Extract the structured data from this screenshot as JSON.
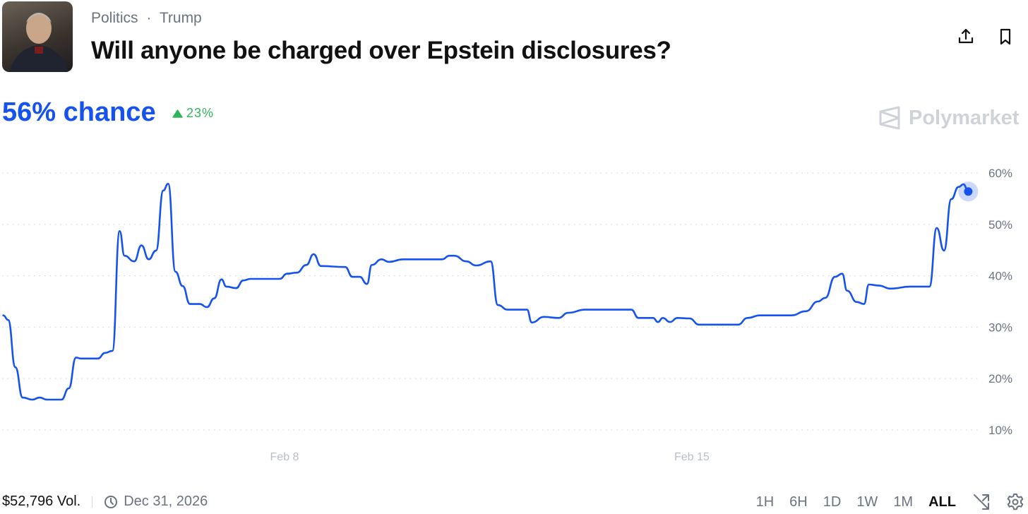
{
  "header": {
    "breadcrumb": [
      "Politics",
      "Trump"
    ],
    "breadcrumb_separator": "·",
    "title": "Will anyone be charged over Epstein disclosures?",
    "icons": [
      "share-icon",
      "bookmark-icon"
    ]
  },
  "summary": {
    "chance": "56% chance",
    "change": "23%",
    "change_direction": "up",
    "brand": "Polymarket"
  },
  "colors": {
    "accent": "#1652f0",
    "positive": "#30b55c"
  },
  "chart_data": {
    "type": "line",
    "title": "",
    "xlabel": "",
    "ylabel": "",
    "x_ticks": [
      "Feb 8",
      "Feb 15"
    ],
    "y_ticks": [
      "10%",
      "20%",
      "30%",
      "40%",
      "50%",
      "60%"
    ],
    "ylim": [
      10,
      60
    ],
    "grid": "horizontal dotted",
    "series": [
      {
        "color": "#1652f0",
        "points": [
          [
            "Feb 3 04:00",
            32.3
          ],
          [
            "Feb 3 06:00",
            31.4
          ],
          [
            "Feb 3 09:00",
            22.2
          ],
          [
            "Feb 3 12:00",
            16.3
          ],
          [
            "Feb 3 16:00",
            15.9
          ],
          [
            "Feb 3 19:00",
            16.3
          ],
          [
            "Feb 3 22:00",
            15.9
          ],
          [
            "Feb 4 04:00",
            15.9
          ],
          [
            "Feb 4 07:00",
            18.1
          ],
          [
            "Feb 4 10:00",
            24.1
          ],
          [
            "Feb 4 12:00",
            23.9
          ],
          [
            "Feb 4 19:00",
            23.9
          ],
          [
            "Feb 4 22:00",
            25.0
          ],
          [
            "Feb 5 01:00",
            25.4
          ],
          [
            "Feb 5 04:00",
            48.7
          ],
          [
            "Feb 5 06:00",
            43.9
          ],
          [
            "Feb 5 10:00",
            42.8
          ],
          [
            "Feb 5 13:00",
            45.9
          ],
          [
            "Feb 5 16:00",
            43.2
          ],
          [
            "Feb 5 19:00",
            44.9
          ],
          [
            "Feb 5 22:00",
            56.6
          ],
          [
            "Feb 6 00:00",
            57.9
          ],
          [
            "Feb 6 03:00",
            40.8
          ],
          [
            "Feb 6 06:00",
            38.0
          ],
          [
            "Feb 6 09:00",
            34.5
          ],
          [
            "Feb 6 13:00",
            34.5
          ],
          [
            "Feb 6 16:00",
            33.9
          ],
          [
            "Feb 6 19:00",
            35.6
          ],
          [
            "Feb 6 22:00",
            39.3
          ],
          [
            "Feb 7 00:00",
            37.9
          ],
          [
            "Feb 7 04:00",
            37.6
          ],
          [
            "Feb 7 07:00",
            39.1
          ],
          [
            "Feb 7 10:00",
            39.4
          ],
          [
            "Feb 7 22:00",
            39.4
          ],
          [
            "Feb 8 01:00",
            40.4
          ],
          [
            "Feb 8 05:00",
            40.6
          ],
          [
            "Feb 8 09:00",
            42.1
          ],
          [
            "Feb 8 12:00",
            44.2
          ],
          [
            "Feb 8 15:00",
            41.9
          ],
          [
            "Feb 9 01:00",
            41.7
          ],
          [
            "Feb 9 04:00",
            39.8
          ],
          [
            "Feb 9 07:00",
            39.8
          ],
          [
            "Feb 9 10:00",
            38.4
          ],
          [
            "Feb 9 12:00",
            42.1
          ],
          [
            "Feb 9 16:00",
            43.2
          ],
          [
            "Feb 9 19:00",
            42.7
          ],
          [
            "Feb 10 01:00",
            43.2
          ],
          [
            "Feb 10 08:00",
            43.2
          ],
          [
            "Feb 10 17:00",
            43.2
          ],
          [
            "Feb 10 20:00",
            43.9
          ],
          [
            "Feb 10 22:00",
            43.9
          ],
          [
            "Feb 11 03:00",
            42.8
          ],
          [
            "Feb 11 07:00",
            42.0
          ],
          [
            "Feb 11 13:00",
            42.8
          ],
          [
            "Feb 11 16:00",
            34.3
          ],
          [
            "Feb 11 20:00",
            33.4
          ],
          [
            "Feb 12 04:00",
            33.4
          ],
          [
            "Feb 12 06:00",
            30.9
          ],
          [
            "Feb 12 11:00",
            32.0
          ],
          [
            "Feb 12 17:00",
            31.8
          ],
          [
            "Feb 12 21:00",
            32.8
          ],
          [
            "Feb 13 04:00",
            33.4
          ],
          [
            "Feb 13 23:00",
            33.4
          ],
          [
            "Feb 14 02:00",
            31.8
          ],
          [
            "Feb 14 08:00",
            31.8
          ],
          [
            "Feb 14 10:00",
            31.0
          ],
          [
            "Feb 14 12:00",
            31.8
          ],
          [
            "Feb 14 15:00",
            31.0
          ],
          [
            "Feb 14 18:00",
            31.8
          ],
          [
            "Feb 14 23:00",
            31.7
          ],
          [
            "Feb 15 03:00",
            30.5
          ],
          [
            "Feb 15 19:00",
            30.5
          ],
          [
            "Feb 15 23:00",
            31.8
          ],
          [
            "Feb 16 04:00",
            32.3
          ],
          [
            "Feb 16 17:00",
            32.3
          ],
          [
            "Feb 16 23:00",
            33.1
          ],
          [
            "Feb 17 04:00",
            35.0
          ],
          [
            "Feb 17 07:00",
            35.7
          ],
          [
            "Feb 17 11:00",
            39.8
          ],
          [
            "Feb 17 14:00",
            40.4
          ],
          [
            "Feb 17 16:00",
            37.1
          ],
          [
            "Feb 17 20:00",
            34.9
          ],
          [
            "Feb 17 23:00",
            34.5
          ],
          [
            "Feb 18 01:00",
            38.3
          ],
          [
            "Feb 18 05:00",
            38.1
          ],
          [
            "Feb 18 10:00",
            37.5
          ],
          [
            "Feb 18 18:00",
            37.9
          ],
          [
            "Feb 19 02:00",
            37.9
          ],
          [
            "Feb 19 05:00",
            49.3
          ],
          [
            "Feb 19 08:00",
            44.9
          ],
          [
            "Feb 19 11:00",
            54.9
          ],
          [
            "Feb 19 14:00",
            57.3
          ],
          [
            "Feb 19 16:00",
            57.8
          ],
          [
            "Feb 19 18:00",
            56.4
          ]
        ]
      }
    ]
  },
  "footer": {
    "volume": "$52,796 Vol.",
    "end_date": "Dec 31, 2026",
    "ranges": [
      "1H",
      "6H",
      "1D",
      "1W",
      "1M",
      "ALL"
    ],
    "active_range": "ALL"
  }
}
